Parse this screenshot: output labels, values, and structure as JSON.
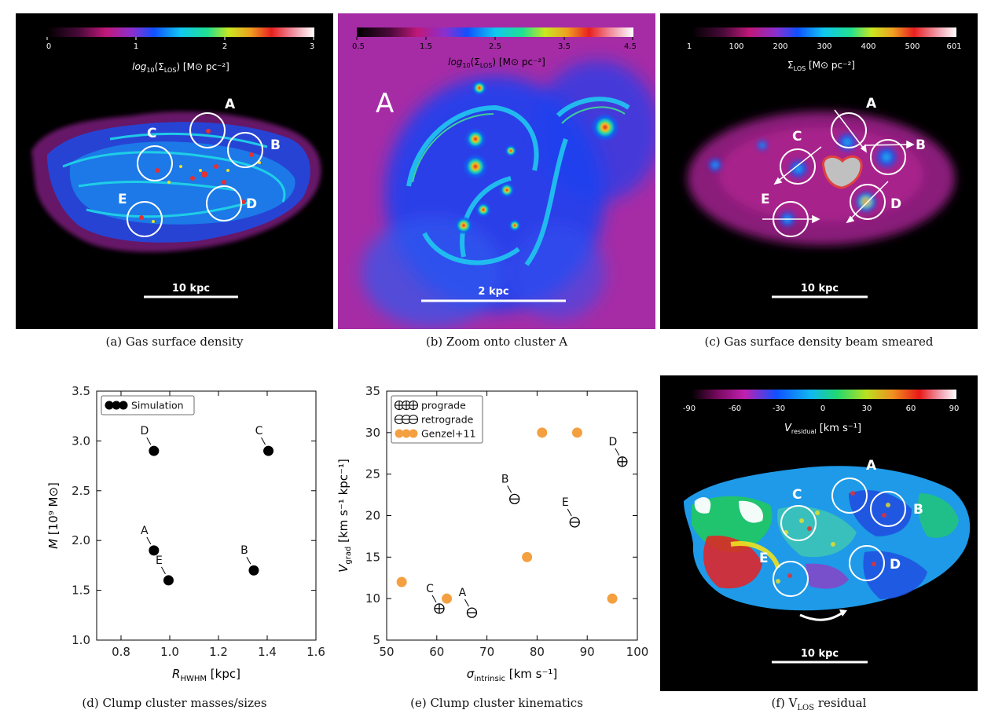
{
  "figure": {
    "panels": [
      {
        "id": "a",
        "caption": "(a) Gas surface density",
        "colorbar": {
          "ticks": [
            "0",
            "1",
            "2",
            "3"
          ],
          "label_pre": "log",
          "label_sub": "10",
          "label_mid": "(Σ",
          "label_sub2": "LOS",
          "label_post": ") [M⊙ pc⁻²]"
        },
        "clumps": [
          "A",
          "B",
          "C",
          "D",
          "E"
        ],
        "scalebar": "10 kpc"
      },
      {
        "id": "b",
        "caption": "(b) Zoom onto cluster A",
        "colorbar": {
          "ticks": [
            "0.5",
            "1.5",
            "2.5",
            "3.5",
            "4.5"
          ],
          "label_pre": "log",
          "label_sub": "10",
          "label_mid": "(Σ",
          "label_sub2": "LOS",
          "label_post": ") [M⊙ pc⁻²]"
        },
        "cluster_label": "A",
        "scalebar": "2 kpc"
      },
      {
        "id": "c",
        "caption": "(c) Gas surface density beam smeared",
        "colorbar": {
          "ticks": [
            "1",
            "100",
            "200",
            "300",
            "400",
            "500",
            "601"
          ],
          "label_main": "Σ",
          "label_sub": "LOS",
          "label_post": " [M⊙ pc⁻²]"
        },
        "clumps": [
          "A",
          "B",
          "C",
          "D",
          "E"
        ],
        "scalebar": "10 kpc"
      },
      {
        "id": "d",
        "caption": "(d) Clump cluster masses/sizes"
      },
      {
        "id": "e",
        "caption": "(e) Clump cluster kinematics"
      },
      {
        "id": "f",
        "caption_pre": "(f) V",
        "caption_sub": "LOS",
        "caption_post": " residual",
        "colorbar": {
          "ticks": [
            "-90",
            "-60",
            "-30",
            "0",
            "30",
            "60",
            "90"
          ],
          "label_main": "V",
          "label_sub": "residual",
          "label_post": " [km s⁻¹]"
        },
        "clumps": [
          "A",
          "B",
          "C",
          "D",
          "E"
        ],
        "scalebar": "10 kpc"
      }
    ]
  },
  "chart_data": [
    {
      "type": "scatter",
      "panel": "d",
      "xlabel": {
        "main": "R",
        "sub": "HWHM",
        "post": " [kpc]"
      },
      "ylabel": {
        "main": "M",
        "post": " [10⁹ M⊙]"
      },
      "xlim": [
        0.7,
        1.6
      ],
      "ylim": [
        1.0,
        3.5
      ],
      "xticks": [
        "0.8",
        "1.0",
        "1.2",
        "1.4",
        "1.6"
      ],
      "yticks": [
        "1.0",
        "1.5",
        "2.0",
        "2.5",
        "3.0",
        "3.5"
      ],
      "grid": false,
      "legend_position": "top-left",
      "series": [
        {
          "name": "Simulation",
          "color": "#000000",
          "points": [
            {
              "label": "A",
              "x": 0.935,
              "y": 1.9
            },
            {
              "label": "B",
              "x": 1.345,
              "y": 1.7
            },
            {
              "label": "C",
              "x": 1.405,
              "y": 2.9
            },
            {
              "label": "D",
              "x": 0.935,
              "y": 2.9
            },
            {
              "label": "E",
              "x": 0.995,
              "y": 1.6
            }
          ]
        }
      ]
    },
    {
      "type": "scatter",
      "panel": "e",
      "xlabel": {
        "main": "σ",
        "sub": "intrinsic",
        "post": " [km s⁻¹]"
      },
      "ylabel": {
        "main": "V",
        "sub": "grad",
        "post": " [km s⁻¹ kpc⁻¹]"
      },
      "xlim": [
        50,
        100
      ],
      "ylim": [
        5,
        35
      ],
      "xticks": [
        "50",
        "60",
        "70",
        "80",
        "90",
        "100"
      ],
      "yticks": [
        "5",
        "10",
        "15",
        "20",
        "25",
        "30",
        "35"
      ],
      "grid": false,
      "legend_position": "top-left",
      "series": [
        {
          "name": "prograde",
          "marker": "circle-plus",
          "points": [
            {
              "label": "C",
              "x": 60.5,
              "y": 8.8
            },
            {
              "label": "D",
              "x": 97,
              "y": 26.5
            }
          ]
        },
        {
          "name": "retrograde",
          "marker": "circle-minus",
          "points": [
            {
              "label": "A",
              "x": 67,
              "y": 8.3
            },
            {
              "label": "B",
              "x": 75.5,
              "y": 22
            },
            {
              "label": "E",
              "x": 87.5,
              "y": 19.2
            }
          ]
        },
        {
          "name": "Genzel+11",
          "marker": "filled-circle",
          "color": "#f4a040",
          "points": [
            {
              "x": 53,
              "y": 12
            },
            {
              "x": 62,
              "y": 10
            },
            {
              "x": 78,
              "y": 15
            },
            {
              "x": 81,
              "y": 30
            },
            {
              "x": 88,
              "y": 30
            },
            {
              "x": 95,
              "y": 10
            }
          ]
        }
      ]
    }
  ]
}
